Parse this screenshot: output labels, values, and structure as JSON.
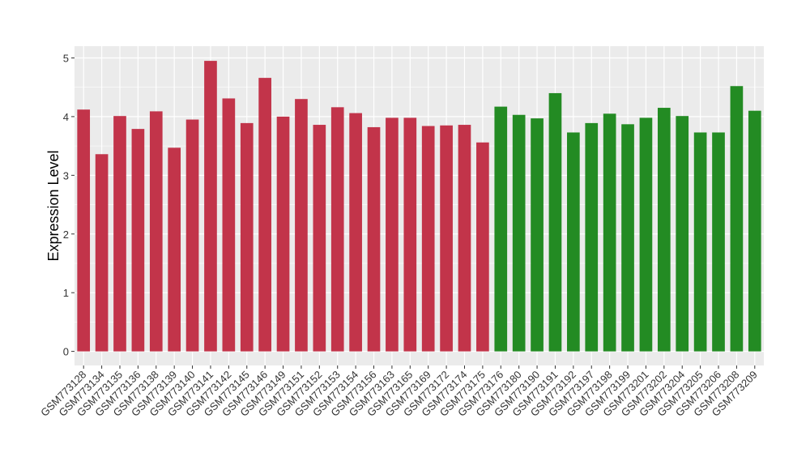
{
  "chart_data": {
    "type": "bar",
    "ylabel": "Expression Level",
    "xlabel": "",
    "title": "",
    "ylim": [
      0,
      5
    ],
    "yticks": [
      0,
      1,
      2,
      3,
      4,
      5
    ],
    "grid": true,
    "background": "#ebebeb",
    "categories": [
      "GSM773128",
      "GSM773134",
      "GSM773135",
      "GSM773136",
      "GSM773138",
      "GSM773139",
      "GSM773140",
      "GSM773141",
      "GSM773142",
      "GSM773145",
      "GSM773146",
      "GSM773149",
      "GSM773151",
      "GSM773152",
      "GSM773153",
      "GSM773154",
      "GSM773156",
      "GSM773163",
      "GSM773165",
      "GSM773169",
      "GSM773172",
      "GSM773174",
      "GSM773175",
      "GSM773176",
      "GSM773180",
      "GSM773190",
      "GSM773191",
      "GSM773192",
      "GSM773197",
      "GSM773198",
      "GSM773199",
      "GSM773201",
      "GSM773202",
      "GSM773204",
      "GSM773205",
      "GSM773206",
      "GSM773208",
      "GSM773209"
    ],
    "values": [
      4.12,
      3.36,
      4.01,
      3.79,
      4.09,
      3.47,
      3.95,
      4.95,
      4.31,
      3.89,
      4.66,
      4.0,
      4.3,
      3.86,
      4.16,
      4.06,
      3.82,
      3.98,
      3.98,
      3.84,
      3.85,
      3.86,
      3.56,
      4.17,
      4.03,
      3.97,
      4.4,
      3.73,
      3.89,
      4.05,
      3.87,
      3.98,
      4.15,
      4.01,
      3.73,
      3.73,
      4.52,
      4.1
    ],
    "groups": [
      "red",
      "red",
      "red",
      "red",
      "red",
      "red",
      "red",
      "red",
      "red",
      "red",
      "red",
      "red",
      "red",
      "red",
      "red",
      "red",
      "red",
      "red",
      "red",
      "red",
      "red",
      "red",
      "red",
      "green",
      "green",
      "green",
      "green",
      "green",
      "green",
      "green",
      "green",
      "green",
      "green",
      "green",
      "green",
      "green",
      "green",
      "green"
    ],
    "colors": {
      "red": "#c2344a",
      "green": "#238b23"
    },
    "grid_color": "#ffffff",
    "axis_text_color": "#333333"
  }
}
